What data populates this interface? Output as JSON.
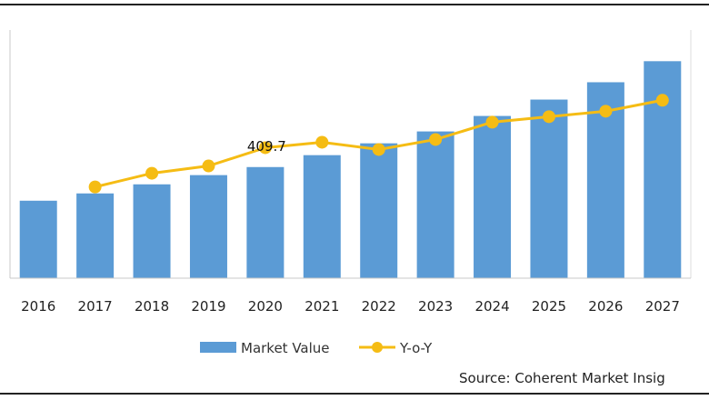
{
  "chart_data": {
    "type": "bar+line",
    "title": "",
    "xlabel": "",
    "ylabel": "",
    "categories": [
      "2016",
      "2017",
      "2018",
      "2019",
      "2020",
      "2021",
      "2022",
      "2023",
      "2024",
      "2025",
      "2026",
      "2027"
    ],
    "series": [
      {
        "name": "Market Value",
        "type": "bar",
        "color": "#5b9bd5",
        "values": [
          285.6,
          312.5,
          346.0,
          380.0,
          409.7,
          453.6,
          497.2,
          541.0,
          598.1,
          658.5,
          722.4,
          800.0
        ]
      },
      {
        "name": "Y-o-Y",
        "type": "line",
        "color": "#f5bc14",
        "axis": "secondary",
        "values": [
          null,
          100,
          115,
          123,
          143,
          149,
          141,
          152,
          171,
          177,
          183,
          195
        ]
      }
    ],
    "data_labels": [
      {
        "category": "2020",
        "text": "409.7"
      }
    ],
    "ylim": [
      0,
      915
    ],
    "y2lim": [
      0,
      272
    ],
    "y_axis_labels_shown": false,
    "grid": false,
    "legend_position": "bottom"
  },
  "source": "Source: Coherent Market Insig"
}
